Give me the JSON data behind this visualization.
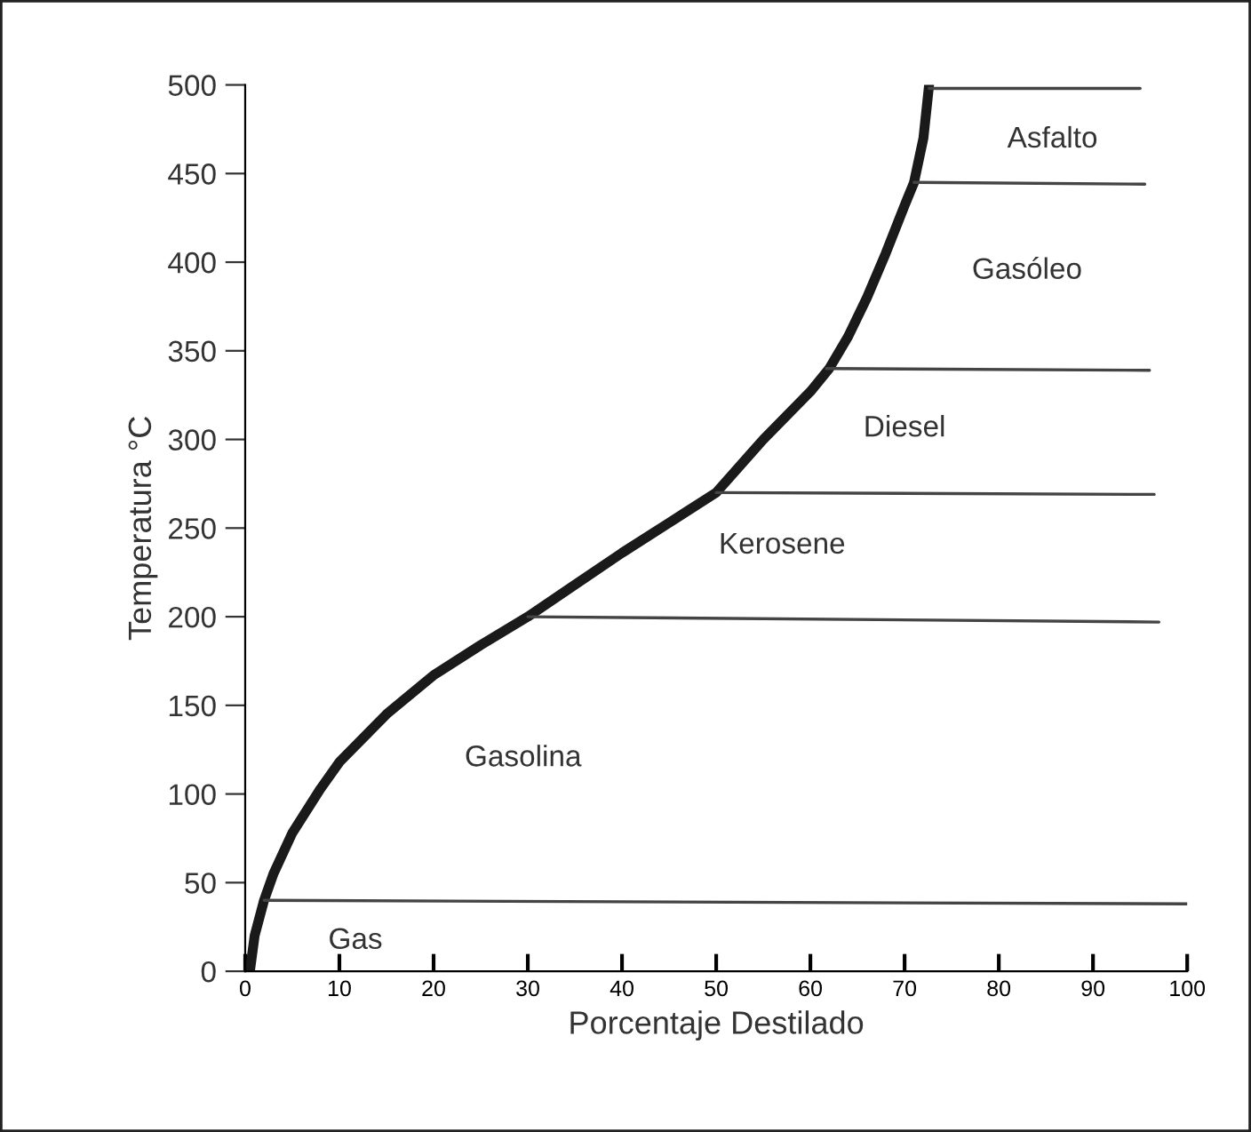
{
  "chart_data": {
    "type": "line",
    "xlabel": "Porcentaje Destilado",
    "ylabel": "Temperatura °C",
    "xlim": [
      0,
      100
    ],
    "xticks": [
      0,
      10,
      20,
      30,
      40,
      50,
      60,
      70,
      80,
      90,
      100
    ],
    "ylim": [
      0,
      500
    ],
    "yticks": [
      0,
      50,
      100,
      150,
      200,
      250,
      300,
      350,
      400,
      450,
      500
    ],
    "grid": false,
    "marker": "none",
    "line_style": "solid",
    "series": [
      {
        "color": "#1a1a1a",
        "x": [
          0.5,
          1,
          2,
          3,
          5,
          8,
          10,
          15,
          20,
          25,
          30,
          35,
          40,
          45,
          50,
          55,
          60,
          62,
          64,
          66,
          68,
          70,
          71,
          72,
          72.6
        ],
        "values": [
          0,
          20,
          40,
          55,
          78,
          103,
          118,
          145,
          167,
          184,
          200,
          218,
          236,
          253,
          270,
          300,
          327,
          340,
          358,
          380,
          405,
          432,
          445,
          470,
          500
        ]
      },
      {
        "color": "#444444",
        "x": [
          2,
          100
        ],
        "values": [
          40,
          38
        ]
      },
      {
        "color": "#444444",
        "x": [
          30,
          97
        ],
        "values": [
          200,
          197
        ]
      },
      {
        "color": "#444444",
        "x": [
          50,
          96.5
        ],
        "values": [
          270,
          269
        ]
      },
      {
        "color": "#444444",
        "x": [
          61.7,
          96
        ],
        "values": [
          340,
          339
        ]
      },
      {
        "color": "#444444",
        "x": [
          71,
          95.5
        ],
        "values": [
          445,
          444
        ]
      },
      {
        "color": "#444444",
        "x": [
          72.6,
          95
        ],
        "values": [
          498,
          498
        ]
      }
    ],
    "annotations": [
      "Gas",
      "Gasolina",
      "Kerosene",
      "Diesel",
      "Gasóleo",
      "Asfalto"
    ]
  }
}
